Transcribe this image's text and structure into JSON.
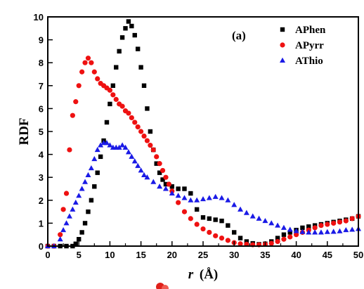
{
  "chart_data": {
    "type": "scatter",
    "panel_label": "(a)",
    "xlabel_var": "r",
    "xlabel_unit": "(Å)",
    "ylabel": "RDF",
    "xlim": [
      0,
      50
    ],
    "ylim": [
      0,
      10
    ],
    "xticks": [
      0,
      5,
      10,
      15,
      20,
      25,
      30,
      35,
      40,
      45,
      50
    ],
    "yticks": [
      0,
      1,
      2,
      3,
      4,
      5,
      6,
      7,
      8,
      9,
      10
    ],
    "legend_position": "top-right",
    "grid": false,
    "series": [
      {
        "name": "APhen",
        "color": "#000000",
        "marker": "square",
        "points": [
          [
            0,
            0
          ],
          [
            1,
            0
          ],
          [
            2,
            0
          ],
          [
            3,
            0
          ],
          [
            4,
            0
          ],
          [
            4.5,
            0.1
          ],
          [
            5,
            0.3
          ],
          [
            5.5,
            0.6
          ],
          [
            6,
            1.0
          ],
          [
            6.5,
            1.5
          ],
          [
            7,
            2.0
          ],
          [
            7.5,
            2.6
          ],
          [
            8,
            3.2
          ],
          [
            8.5,
            3.9
          ],
          [
            9,
            4.6
          ],
          [
            9.5,
            5.4
          ],
          [
            10,
            6.2
          ],
          [
            10.5,
            7.0
          ],
          [
            11,
            7.8
          ],
          [
            11.5,
            8.5
          ],
          [
            12,
            9.1
          ],
          [
            12.5,
            9.5
          ],
          [
            13,
            9.8
          ],
          [
            13.5,
            9.6
          ],
          [
            14,
            9.2
          ],
          [
            14.5,
            8.6
          ],
          [
            15,
            7.8
          ],
          [
            15.5,
            7.0
          ],
          [
            16,
            6.0
          ],
          [
            16.5,
            5.0
          ],
          [
            17,
            4.2
          ],
          [
            17.5,
            3.6
          ],
          [
            18,
            3.2
          ],
          [
            18.5,
            2.9
          ],
          [
            19,
            2.7
          ],
          [
            20,
            2.6
          ],
          [
            21,
            2.5
          ],
          [
            22,
            2.5
          ],
          [
            23,
            2.3
          ],
          [
            24,
            1.6
          ],
          [
            25,
            1.25
          ],
          [
            26,
            1.2
          ],
          [
            27,
            1.15
          ],
          [
            28,
            1.1
          ],
          [
            29,
            0.9
          ],
          [
            30,
            0.6
          ],
          [
            31,
            0.35
          ],
          [
            32,
            0.2
          ],
          [
            33,
            0.12
          ],
          [
            34,
            0.08
          ],
          [
            35,
            0.1
          ],
          [
            36,
            0.2
          ],
          [
            37,
            0.35
          ],
          [
            38,
            0.5
          ],
          [
            39,
            0.6
          ],
          [
            40,
            0.7
          ],
          [
            41,
            0.8
          ],
          [
            42,
            0.85
          ],
          [
            43,
            0.9
          ],
          [
            44,
            0.95
          ],
          [
            45,
            1.0
          ],
          [
            46,
            1.05
          ],
          [
            47,
            1.1
          ],
          [
            48,
            1.15
          ],
          [
            49,
            1.2
          ],
          [
            50,
            1.3
          ]
        ]
      },
      {
        "name": "APyrr",
        "color": "#ee1111",
        "marker": "circle",
        "points": [
          [
            0,
            0
          ],
          [
            1,
            0
          ],
          [
            2,
            0.5
          ],
          [
            2.5,
            1.6
          ],
          [
            3,
            2.3
          ],
          [
            3.5,
            4.2
          ],
          [
            4,
            5.7
          ],
          [
            4.5,
            6.3
          ],
          [
            5,
            7.0
          ],
          [
            5.5,
            7.6
          ],
          [
            6,
            8.0
          ],
          [
            6.5,
            8.2
          ],
          [
            7,
            8.0
          ],
          [
            7.5,
            7.6
          ],
          [
            8,
            7.3
          ],
          [
            8.5,
            7.1
          ],
          [
            9,
            7.0
          ],
          [
            9.5,
            6.9
          ],
          [
            10,
            6.8
          ],
          [
            10.5,
            6.6
          ],
          [
            11,
            6.4
          ],
          [
            11.5,
            6.2
          ],
          [
            12,
            6.1
          ],
          [
            12.5,
            5.9
          ],
          [
            13,
            5.8
          ],
          [
            13.5,
            5.6
          ],
          [
            14,
            5.4
          ],
          [
            14.5,
            5.2
          ],
          [
            15,
            5.0
          ],
          [
            15.5,
            4.8
          ],
          [
            16,
            4.6
          ],
          [
            16.5,
            4.4
          ],
          [
            17,
            4.2
          ],
          [
            17.5,
            3.9
          ],
          [
            18,
            3.6
          ],
          [
            18.5,
            3.3
          ],
          [
            19,
            3.0
          ],
          [
            19.5,
            2.7
          ],
          [
            20,
            2.4
          ],
          [
            21,
            1.9
          ],
          [
            22,
            1.5
          ],
          [
            23,
            1.2
          ],
          [
            24,
            0.95
          ],
          [
            25,
            0.75
          ],
          [
            26,
            0.6
          ],
          [
            27,
            0.45
          ],
          [
            28,
            0.35
          ],
          [
            29,
            0.25
          ],
          [
            30,
            0.15
          ],
          [
            31,
            0.1
          ],
          [
            32,
            0.08
          ],
          [
            33,
            0.06
          ],
          [
            34,
            0.06
          ],
          [
            35,
            0.08
          ],
          [
            36,
            0.12
          ],
          [
            37,
            0.2
          ],
          [
            38,
            0.3
          ],
          [
            39,
            0.4
          ],
          [
            40,
            0.5
          ],
          [
            41,
            0.6
          ],
          [
            42,
            0.7
          ],
          [
            43,
            0.8
          ],
          [
            44,
            0.9
          ],
          [
            45,
            0.95
          ],
          [
            46,
            1.0
          ],
          [
            47,
            1.05
          ],
          [
            48,
            1.1
          ],
          [
            49,
            1.2
          ],
          [
            50,
            1.3
          ]
        ]
      },
      {
        "name": "AThio",
        "color": "#1a1ae6",
        "marker": "triangle",
        "points": [
          [
            0,
            0
          ],
          [
            1,
            0
          ],
          [
            2,
            0.3
          ],
          [
            2.5,
            0.7
          ],
          [
            3,
            1.0
          ],
          [
            3.5,
            1.3
          ],
          [
            4,
            1.6
          ],
          [
            4.5,
            1.9
          ],
          [
            5,
            2.2
          ],
          [
            5.5,
            2.5
          ],
          [
            6,
            2.8
          ],
          [
            6.5,
            3.1
          ],
          [
            7,
            3.4
          ],
          [
            7.5,
            3.8
          ],
          [
            8,
            4.2
          ],
          [
            8.5,
            4.4
          ],
          [
            9,
            4.5
          ],
          [
            9.5,
            4.5
          ],
          [
            10,
            4.4
          ],
          [
            10.5,
            4.3
          ],
          [
            11,
            4.3
          ],
          [
            11.5,
            4.3
          ],
          [
            12,
            4.4
          ],
          [
            12.5,
            4.3
          ],
          [
            13,
            4.1
          ],
          [
            13.5,
            3.9
          ],
          [
            14,
            3.7
          ],
          [
            14.5,
            3.5
          ],
          [
            15,
            3.3
          ],
          [
            15.5,
            3.1
          ],
          [
            16,
            3.0
          ],
          [
            17,
            2.8
          ],
          [
            18,
            2.6
          ],
          [
            19,
            2.5
          ],
          [
            20,
            2.3
          ],
          [
            21,
            2.2
          ],
          [
            22,
            2.1
          ],
          [
            23,
            2.0
          ],
          [
            24,
            2.0
          ],
          [
            25,
            2.05
          ],
          [
            26,
            2.1
          ],
          [
            27,
            2.15
          ],
          [
            28,
            2.1
          ],
          [
            29,
            2.0
          ],
          [
            30,
            1.8
          ],
          [
            31,
            1.6
          ],
          [
            32,
            1.45
          ],
          [
            33,
            1.3
          ],
          [
            34,
            1.2
          ],
          [
            35,
            1.1
          ],
          [
            36,
            1.0
          ],
          [
            37,
            0.9
          ],
          [
            38,
            0.8
          ],
          [
            39,
            0.72
          ],
          [
            40,
            0.66
          ],
          [
            41,
            0.62
          ],
          [
            42,
            0.6
          ],
          [
            43,
            0.6
          ],
          [
            44,
            0.6
          ],
          [
            45,
            0.62
          ],
          [
            46,
            0.63
          ],
          [
            47,
            0.65
          ],
          [
            48,
            0.7
          ],
          [
            49,
            0.72
          ],
          [
            50,
            0.75
          ]
        ]
      }
    ]
  }
}
